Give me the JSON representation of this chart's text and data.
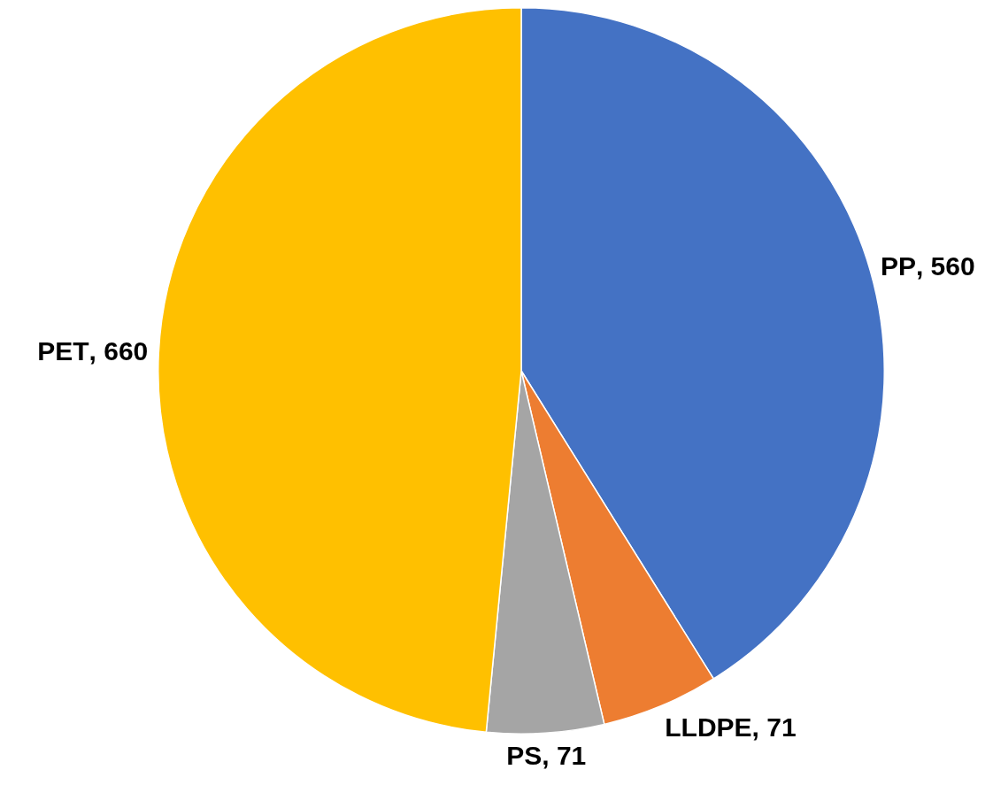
{
  "chart_data": {
    "type": "pie",
    "categories": [
      "PP",
      "LLDPE",
      "PS",
      "PET"
    ],
    "values": [
      560,
      71,
      71,
      660
    ],
    "colors": [
      "#4472c4",
      "#ed7d31",
      "#a5a5a5",
      "#ffc000"
    ],
    "value_labels": [
      ", 560",
      ", 71",
      ", 71",
      ", 660"
    ]
  }
}
